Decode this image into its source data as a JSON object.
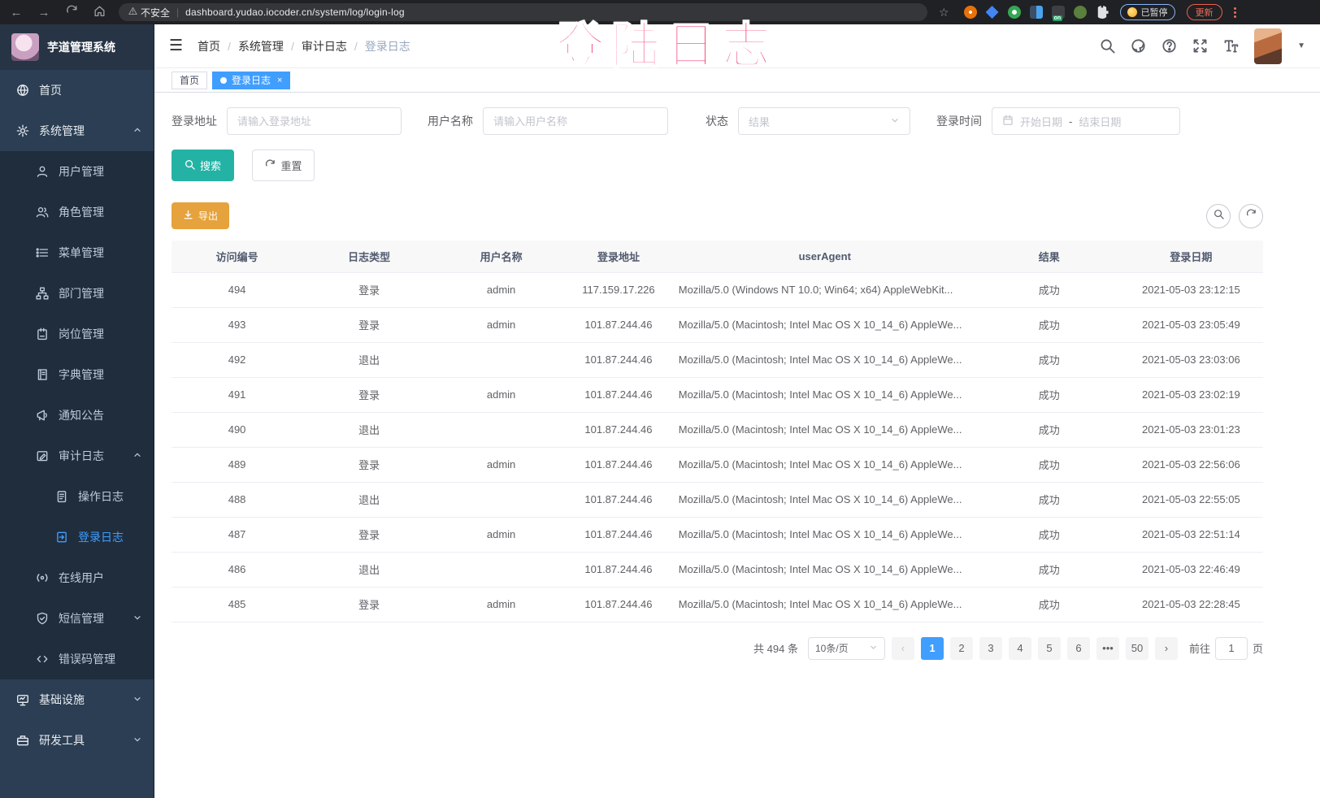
{
  "browser": {
    "security_label": "不安全",
    "url": "dashboard.yudao.iocoder.cn/system/log/login-log",
    "paused_badge": "已暂停",
    "update_button": "更新"
  },
  "overlay": {
    "text": "登陆日志"
  },
  "sidebar": {
    "app_title": "芋道管理系统",
    "items": [
      {
        "key": "home",
        "label": "首页",
        "icon": "home-icon",
        "level": 1
      },
      {
        "key": "system",
        "label": "系统管理",
        "icon": "gear-icon",
        "level": 1,
        "arrow": "up"
      },
      {
        "key": "user",
        "label": "用户管理",
        "icon": "user-icon",
        "level": 2
      },
      {
        "key": "role",
        "label": "角色管理",
        "icon": "users-icon",
        "level": 2
      },
      {
        "key": "menu",
        "label": "菜单管理",
        "icon": "menu-list-icon",
        "level": 2
      },
      {
        "key": "dept",
        "label": "部门管理",
        "icon": "org-tree-icon",
        "level": 2
      },
      {
        "key": "post",
        "label": "岗位管理",
        "icon": "badge-icon",
        "level": 2
      },
      {
        "key": "dict",
        "label": "字典管理",
        "icon": "dictionary-icon",
        "level": 2
      },
      {
        "key": "notice",
        "label": "通知公告",
        "icon": "announcement-icon",
        "level": 2
      },
      {
        "key": "audit-log",
        "label": "审计日志",
        "icon": "audit-log-icon",
        "level": 2,
        "arrow": "up"
      },
      {
        "key": "operation-log",
        "label": "操作日志",
        "icon": "operation-log-icon",
        "level": 3
      },
      {
        "key": "login-log",
        "label": "登录日志",
        "icon": "login-log-icon",
        "level": 3,
        "active": true
      },
      {
        "key": "online-user",
        "label": "在线用户",
        "icon": "online-users-icon",
        "level": 2
      },
      {
        "key": "sms",
        "label": "短信管理",
        "icon": "shield-check-icon",
        "level": 2,
        "arrow": "down"
      },
      {
        "key": "error-code",
        "label": "错误码管理",
        "icon": "code-icon",
        "level": 2
      },
      {
        "key": "infra",
        "label": "基础设施",
        "icon": "monitor-icon",
        "level": 1,
        "arrow": "down"
      },
      {
        "key": "dev-tool",
        "label": "研发工具",
        "icon": "toolbox-icon",
        "level": 1,
        "arrow": "down"
      }
    ]
  },
  "header": {
    "breadcrumb": [
      "首页",
      "系统管理",
      "审计日志",
      "登录日志"
    ]
  },
  "tags": [
    {
      "label": "首页",
      "active": false,
      "closable": false
    },
    {
      "label": "登录日志",
      "active": true,
      "closable": true
    }
  ],
  "filters": {
    "login_address_label": "登录地址",
    "login_address_placeholder": "请输入登录地址",
    "username_label": "用户名称",
    "username_placeholder": "请输入用户名称",
    "status_label": "状态",
    "status_placeholder": "结果",
    "login_time_label": "登录时间",
    "date_start_placeholder": "开始日期",
    "date_separator": "-",
    "date_end_placeholder": "结束日期",
    "search_button": "搜索",
    "reset_button": "重置",
    "export_button": "导出"
  },
  "table": {
    "columns": [
      "访问编号",
      "日志类型",
      "用户名称",
      "登录地址",
      "userAgent",
      "结果",
      "登录日期"
    ],
    "rows": [
      {
        "id": "494",
        "type": "登录",
        "user": "admin",
        "ip": "117.159.17.226",
        "agent": "Mozilla/5.0 (Windows NT 10.0; Win64; x64) AppleWebKit...",
        "result": "成功",
        "date": "2021-05-03 23:12:15"
      },
      {
        "id": "493",
        "type": "登录",
        "user": "admin",
        "ip": "101.87.244.46",
        "agent": "Mozilla/5.0 (Macintosh; Intel Mac OS X 10_14_6) AppleWe...",
        "result": "成功",
        "date": "2021-05-03 23:05:49"
      },
      {
        "id": "492",
        "type": "退出",
        "user": "",
        "ip": "101.87.244.46",
        "agent": "Mozilla/5.0 (Macintosh; Intel Mac OS X 10_14_6) AppleWe...",
        "result": "成功",
        "date": "2021-05-03 23:03:06"
      },
      {
        "id": "491",
        "type": "登录",
        "user": "admin",
        "ip": "101.87.244.46",
        "agent": "Mozilla/5.0 (Macintosh; Intel Mac OS X 10_14_6) AppleWe...",
        "result": "成功",
        "date": "2021-05-03 23:02:19"
      },
      {
        "id": "490",
        "type": "退出",
        "user": "",
        "ip": "101.87.244.46",
        "agent": "Mozilla/5.0 (Macintosh; Intel Mac OS X 10_14_6) AppleWe...",
        "result": "成功",
        "date": "2021-05-03 23:01:23"
      },
      {
        "id": "489",
        "type": "登录",
        "user": "admin",
        "ip": "101.87.244.46",
        "agent": "Mozilla/5.0 (Macintosh; Intel Mac OS X 10_14_6) AppleWe...",
        "result": "成功",
        "date": "2021-05-03 22:56:06"
      },
      {
        "id": "488",
        "type": "退出",
        "user": "",
        "ip": "101.87.244.46",
        "agent": "Mozilla/5.0 (Macintosh; Intel Mac OS X 10_14_6) AppleWe...",
        "result": "成功",
        "date": "2021-05-03 22:55:05"
      },
      {
        "id": "487",
        "type": "登录",
        "user": "admin",
        "ip": "101.87.244.46",
        "agent": "Mozilla/5.0 (Macintosh; Intel Mac OS X 10_14_6) AppleWe...",
        "result": "成功",
        "date": "2021-05-03 22:51:14"
      },
      {
        "id": "486",
        "type": "退出",
        "user": "",
        "ip": "101.87.244.46",
        "agent": "Mozilla/5.0 (Macintosh; Intel Mac OS X 10_14_6) AppleWe...",
        "result": "成功",
        "date": "2021-05-03 22:46:49"
      },
      {
        "id": "485",
        "type": "登录",
        "user": "admin",
        "ip": "101.87.244.46",
        "agent": "Mozilla/5.0 (Macintosh; Intel Mac OS X 10_14_6) AppleWe...",
        "result": "成功",
        "date": "2021-05-03 22:28:45"
      }
    ]
  },
  "pagination": {
    "total_text": "共 494 条",
    "page_size": "10条/页",
    "pages": [
      "1",
      "2",
      "3",
      "4",
      "5",
      "6",
      "...",
      "50"
    ],
    "active_page": "1",
    "goto_label": "前往",
    "goto_value": "1",
    "goto_suffix": "页"
  },
  "colors": {
    "accent_blue": "#409EFF",
    "search_teal": "#24b2a4",
    "export_orange": "#E6A23C",
    "overlay_pink": "#f23a6e"
  }
}
